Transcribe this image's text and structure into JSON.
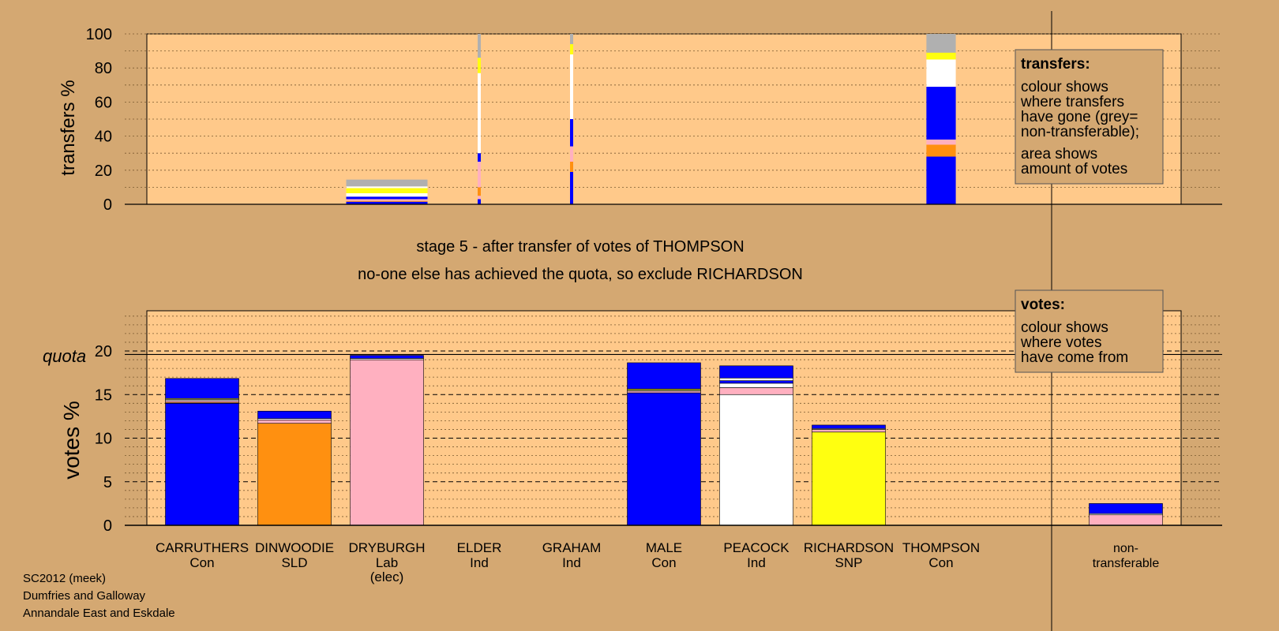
{
  "colors": {
    "background": "#d4a872",
    "plot_bg": "#ffc98a",
    "Con": "#0000ff",
    "SLD": "#ff9010",
    "Lab": "#ffb0c0",
    "Ind_peacock": "#ffffff",
    "SNP": "#ffff10",
    "non_transferable": "#b0b0b0"
  },
  "stage_text": {
    "line1": "stage 5 - after transfer of votes of THOMPSON",
    "line2": "no-one else has achieved the quota, so exclude RICHARDSON"
  },
  "legend_transfers": {
    "title": "transfers:",
    "lines": [
      "colour shows",
      "where transfers",
      "have gone (grey=",
      "non-transferable);",
      "area shows",
      "amount of votes"
    ]
  },
  "legend_votes": {
    "title": "votes:",
    "lines": [
      "colour shows",
      "where votes",
      "have come from"
    ]
  },
  "footer": [
    "SC2012 (meek)",
    "Dumfries and Galloway",
    "Annandale East and Eskdale"
  ],
  "chart_data": [
    {
      "type": "bar",
      "title": "",
      "ylabel": "transfers %",
      "ylim": [
        0,
        100
      ],
      "yticks": [
        0,
        20,
        40,
        60,
        80,
        100
      ],
      "grid": "dotted every 10",
      "categories": [
        "DRYBURGH",
        "ELDER",
        "GRAHAM",
        "THOMPSON"
      ],
      "stacks": [
        {
          "category": "DRYBURGH",
          "width_rel": 1.0,
          "segments": [
            {
              "color": "Con",
              "value": 1.5
            },
            {
              "color": "SLD",
              "value": 0.5
            },
            {
              "color": "Lab",
              "value": 1.0
            },
            {
              "color": "Con",
              "value": 1.5
            },
            {
              "color": "Ind_peacock",
              "value": 2.0
            },
            {
              "color": "SNP",
              "value": 3.0
            },
            {
              "color": "Ind_peacock",
              "value": 1.0
            },
            {
              "color": "non_transferable",
              "value": 4.0
            }
          ]
        },
        {
          "category": "ELDER",
          "width_rel": 0.04,
          "segments": [
            {
              "color": "Con",
              "value": 3
            },
            {
              "color": "Lab",
              "value": 2
            },
            {
              "color": "SLD",
              "value": 5
            },
            {
              "color": "Lab",
              "value": 15
            },
            {
              "color": "Con",
              "value": 5
            },
            {
              "color": "Ind_peacock",
              "value": 47
            },
            {
              "color": "SNP",
              "value": 9
            },
            {
              "color": "non_transferable",
              "value": 14
            }
          ]
        },
        {
          "category": "GRAHAM",
          "width_rel": 0.04,
          "segments": [
            {
              "color": "Con",
              "value": 19
            },
            {
              "color": "SLD",
              "value": 6
            },
            {
              "color": "Lab",
              "value": 9
            },
            {
              "color": "Con",
              "value": 16
            },
            {
              "color": "Ind_peacock",
              "value": 38
            },
            {
              "color": "SNP",
              "value": 6
            },
            {
              "color": "non_transferable",
              "value": 6
            }
          ]
        },
        {
          "category": "THOMPSON",
          "width_rel": 0.4,
          "segments": [
            {
              "color": "Con",
              "value": 28
            },
            {
              "color": "SLD",
              "value": 7
            },
            {
              "color": "Lab",
              "value": 3
            },
            {
              "color": "Con",
              "value": 31
            },
            {
              "color": "Ind_peacock",
              "value": 16
            },
            {
              "color": "SNP",
              "value": 4
            },
            {
              "color": "non_transferable",
              "value": 11
            }
          ]
        }
      ]
    },
    {
      "type": "bar",
      "title": "",
      "ylabel": "votes %",
      "ylim": [
        0,
        25
      ],
      "yticks": [
        0,
        5,
        10,
        15,
        20
      ],
      "quota": 19.6,
      "quota_label": "quota",
      "grid": "dotted every 1, dashed every 5",
      "categories": [
        {
          "name": "CARRUTHERS",
          "party": "Con",
          "note": ""
        },
        {
          "name": "DINWOODIE",
          "party": "SLD",
          "note": ""
        },
        {
          "name": "DRYBURGH",
          "party": "Lab",
          "note": "(elec)"
        },
        {
          "name": "ELDER",
          "party": "Ind",
          "note": ""
        },
        {
          "name": "GRAHAM",
          "party": "Ind",
          "note": ""
        },
        {
          "name": "MALE",
          "party": "Con",
          "note": ""
        },
        {
          "name": "PEACOCK",
          "party": "Ind",
          "note": ""
        },
        {
          "name": "RICHARDSON",
          "party": "SNP",
          "note": ""
        },
        {
          "name": "THOMPSON",
          "party": "Con",
          "note": ""
        },
        {
          "name": "non-",
          "party": "transferable",
          "note": ""
        }
      ],
      "stacks": [
        {
          "category": "CARRUTHERS",
          "segments": [
            {
              "color": "Con",
              "value": 14.0
            },
            {
              "color": "SLD",
              "value": 0.1
            },
            {
              "color": "Lab",
              "value": 0.2
            },
            {
              "color": "Ind_peacock",
              "value": 0.15
            },
            {
              "color": "SNP",
              "value": 0.1
            },
            {
              "color": "Con",
              "value": 2.3
            }
          ]
        },
        {
          "category": "DINWOODIE",
          "segments": [
            {
              "color": "SLD",
              "value": 11.7
            },
            {
              "color": "Lab",
              "value": 0.4
            },
            {
              "color": "Ind_peacock",
              "value": 0.15
            },
            {
              "color": "Con",
              "value": 0.85
            }
          ]
        },
        {
          "category": "DRYBURGH",
          "segments": [
            {
              "color": "Lab",
              "value": 19.0
            },
            {
              "color": "Ind_peacock",
              "value": 0.15
            },
            {
              "color": "Con",
              "value": 0.35
            }
          ]
        },
        {
          "category": "ELDER",
          "segments": []
        },
        {
          "category": "GRAHAM",
          "segments": []
        },
        {
          "category": "MALE",
          "segments": [
            {
              "color": "Con",
              "value": 15.2
            },
            {
              "color": "Lab",
              "value": 0.2
            },
            {
              "color": "Ind_peacock",
              "value": 0.1
            },
            {
              "color": "SNP",
              "value": 0.15
            },
            {
              "color": "Con",
              "value": 3.0
            }
          ]
        },
        {
          "category": "PEACOCK",
          "segments": [
            {
              "color": "Ind_peacock",
              "value": 15.0
            },
            {
              "color": "Lab",
              "value": 0.8
            },
            {
              "color": "Ind_peacock",
              "value": 0.5
            },
            {
              "color": "Con",
              "value": 0.3
            },
            {
              "color": "Ind_peacock",
              "value": 0.3
            },
            {
              "color": "Con",
              "value": 1.4
            }
          ]
        },
        {
          "category": "RICHARDSON",
          "segments": [
            {
              "color": "SNP",
              "value": 10.7
            },
            {
              "color": "Lab",
              "value": 0.3
            },
            {
              "color": "Ind_peacock",
              "value": 0.1
            },
            {
              "color": "Con",
              "value": 0.4
            }
          ]
        },
        {
          "category": "THOMPSON",
          "segments": []
        },
        {
          "category": "non-transferable",
          "segments": [
            {
              "color": "Lab",
              "value": 1.2
            },
            {
              "color": "Ind_peacock",
              "value": 0.15
            },
            {
              "color": "Con",
              "value": 1.15
            }
          ]
        }
      ]
    }
  ]
}
